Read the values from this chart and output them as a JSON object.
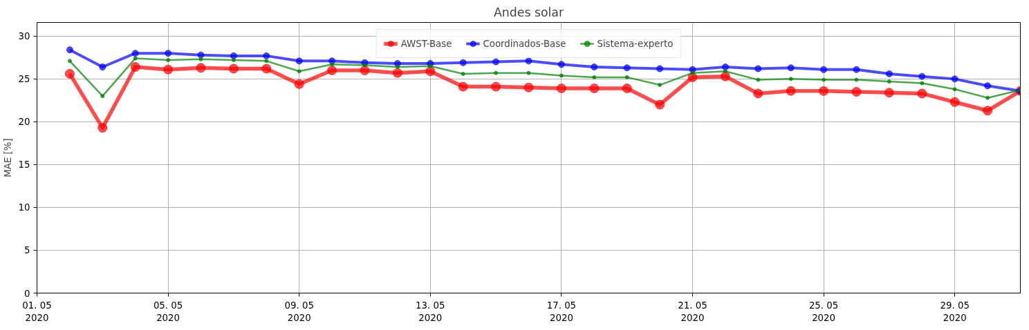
{
  "chart_data": {
    "type": "line",
    "title": "Andes solar",
    "ylabel": "MAE [%]",
    "x": [
      "2020-05-02",
      "2020-05-03",
      "2020-05-04",
      "2020-05-05",
      "2020-05-06",
      "2020-05-07",
      "2020-05-08",
      "2020-05-09",
      "2020-05-10",
      "2020-05-11",
      "2020-05-12",
      "2020-05-13",
      "2020-05-14",
      "2020-05-15",
      "2020-05-16",
      "2020-05-17",
      "2020-05-18",
      "2020-05-19",
      "2020-05-20",
      "2020-05-21",
      "2020-05-22",
      "2020-05-23",
      "2020-05-24",
      "2020-05-25",
      "2020-05-26",
      "2020-05-27",
      "2020-05-28",
      "2020-05-29",
      "2020-05-30",
      "2020-05-31"
    ],
    "series": [
      {
        "name": "AWST-Base",
        "color": "#ff0000",
        "values": [
          25.6,
          19.3,
          26.4,
          26.1,
          26.3,
          26.2,
          26.2,
          24.4,
          26.0,
          26.0,
          25.7,
          25.9,
          24.1,
          24.1,
          24.0,
          23.9,
          23.9,
          23.9,
          22.0,
          25.2,
          25.3,
          23.3,
          23.6,
          23.6,
          23.5,
          23.4,
          23.3,
          22.3,
          21.3,
          23.6
        ]
      },
      {
        "name": "Coordinados-Base",
        "color": "#0000ff",
        "values": [
          28.4,
          26.4,
          28.0,
          28.0,
          27.8,
          27.7,
          27.7,
          27.1,
          27.1,
          26.9,
          26.8,
          26.8,
          26.9,
          27.0,
          27.1,
          26.7,
          26.4,
          26.3,
          26.2,
          26.1,
          26.4,
          26.2,
          26.3,
          26.1,
          26.1,
          25.6,
          25.3,
          25.0,
          24.2,
          23.6
        ]
      },
      {
        "name": "Sistema-experto",
        "color": "#008000",
        "values": [
          27.1,
          23.0,
          27.4,
          27.2,
          27.3,
          27.2,
          27.1,
          25.9,
          26.7,
          26.6,
          26.4,
          26.5,
          25.6,
          25.7,
          25.7,
          25.4,
          25.2,
          25.2,
          24.3,
          25.7,
          25.9,
          24.9,
          25.0,
          24.9,
          24.9,
          24.7,
          24.5,
          23.8,
          22.8,
          23.7
        ]
      }
    ],
    "xlim": [
      "2020-05-01",
      "2020-05-31"
    ],
    "xticks": [
      {
        "value": "2020-05-01",
        "label": "01. 05\n2020"
      },
      {
        "value": "2020-05-05",
        "label": "05. 05\n2020"
      },
      {
        "value": "2020-05-09",
        "label": "09. 05\n2020"
      },
      {
        "value": "2020-05-13",
        "label": "13. 05\n2020"
      },
      {
        "value": "2020-05-17",
        "label": "17. 05\n2020"
      },
      {
        "value": "2020-05-21",
        "label": "21. 05\n2020"
      },
      {
        "value": "2020-05-25",
        "label": "25. 05\n2020"
      },
      {
        "value": "2020-05-29",
        "label": "29. 05\n2020"
      }
    ],
    "ylim": [
      0,
      31.6
    ],
    "yticks": [
      0,
      5,
      10,
      15,
      20,
      25,
      30
    ],
    "grid": true,
    "legend": "top",
    "marker": "circle",
    "line_style": "solid"
  }
}
